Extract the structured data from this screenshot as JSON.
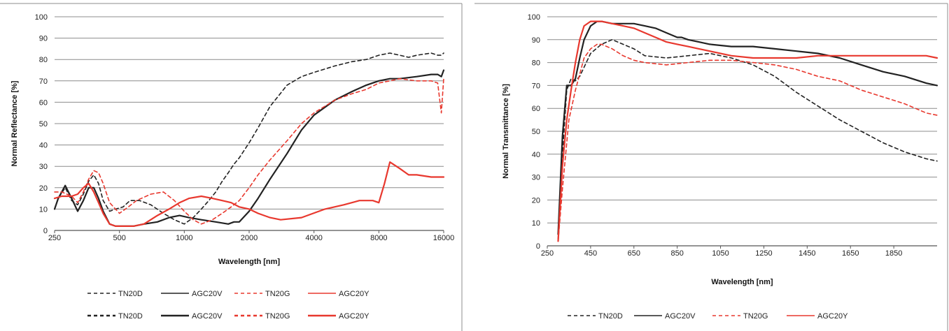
{
  "chart_data": [
    {
      "type": "line",
      "xlabel": "Wavelength [nm]",
      "ylabel": "Normal Reflectance [%]",
      "x_scale": "log2",
      "xlim": [
        250,
        16000
      ],
      "ylim": [
        0,
        100
      ],
      "x_ticks": [
        250,
        500,
        1000,
        2000,
        4000,
        8000,
        16000
      ],
      "x_tick_labels": [
        "250",
        "500",
        "1000",
        "2000",
        "4000",
        "8000",
        "16000"
      ],
      "y_ticks": [
        0,
        10,
        20,
        30,
        40,
        50,
        60,
        70,
        80,
        90,
        100
      ],
      "y_tick_labels": [
        "0",
        "10",
        "20",
        "30",
        "40",
        "50",
        "60",
        "70",
        "80",
        "90",
        "100"
      ],
      "grid": true,
      "legend_position": "bottom",
      "legend_rows": [
        [
          {
            "name": "TN20D",
            "color": "#222222",
            "dash": "dashed",
            "weight": "thin"
          },
          {
            "name": "AGC20V",
            "color": "#222222",
            "dash": "solid",
            "weight": "thin"
          },
          {
            "name": "TN20G",
            "color": "#e8382e",
            "dash": "dashed",
            "weight": "thin"
          },
          {
            "name": "AGC20Y",
            "color": "#e8382e",
            "dash": "solid",
            "weight": "thin"
          }
        ],
        [
          {
            "name": "TN20D",
            "color": "#222222",
            "dash": "dashed",
            "weight": "thick"
          },
          {
            "name": "AGC20V",
            "color": "#222222",
            "dash": "solid",
            "weight": "thick"
          },
          {
            "name": "TN20G",
            "color": "#e8382e",
            "dash": "dashed",
            "weight": "thick"
          },
          {
            "name": "AGC20Y",
            "color": "#e8382e",
            "dash": "solid",
            "weight": "thick"
          }
        ]
      ],
      "series": [
        {
          "name": "TN20D",
          "color": "#222222",
          "dash": "dashed",
          "x": [
            250,
            260,
            280,
            300,
            320,
            340,
            360,
            380,
            400,
            420,
            450,
            480,
            520,
            560,
            620,
            700,
            800,
            900,
            1000,
            1100,
            1200,
            1300,
            1400,
            1500,
            1600,
            1700,
            1800,
            2000,
            2200,
            2500,
            3000,
            3500,
            4000,
            5000,
            6000,
            7000,
            8000,
            9000,
            10000,
            11000,
            12000,
            14000,
            15000,
            15600,
            16000
          ],
          "y": [
            10,
            15,
            20,
            14,
            12,
            17,
            23,
            26,
            22,
            14,
            9,
            10,
            11,
            14,
            14,
            12,
            8,
            5,
            3,
            6,
            10,
            14,
            18,
            23,
            27,
            31,
            34,
            41,
            48,
            58,
            68,
            72,
            74,
            77,
            79,
            80,
            82,
            83,
            82,
            81,
            82,
            83,
            82,
            82,
            83
          ]
        },
        {
          "name": "AGC20V",
          "color": "#222222",
          "dash": "solid",
          "x": [
            250,
            260,
            280,
            300,
            320,
            340,
            360,
            380,
            400,
            420,
            450,
            480,
            520,
            580,
            650,
            750,
            850,
            950,
            1050,
            1200,
            1400,
            1600,
            1700,
            1800,
            2000,
            2200,
            2500,
            3000,
            3500,
            4000,
            5000,
            6000,
            7000,
            8000,
            9000,
            10000,
            12000,
            14000,
            15000,
            15600,
            16000
          ],
          "y": [
            10,
            15,
            21,
            15,
            9,
            14,
            20,
            20,
            15,
            9,
            3,
            2,
            2,
            2,
            3,
            4,
            6,
            7,
            6,
            5,
            4,
            3,
            4,
            4,
            9,
            15,
            24,
            36,
            47,
            54,
            61,
            65,
            68,
            70,
            71,
            71,
            72,
            73,
            73,
            72,
            75
          ]
        },
        {
          "name": "TN20G",
          "color": "#e8382e",
          "dash": "dashed",
          "x": [
            250,
            270,
            300,
            320,
            340,
            360,
            380,
            400,
            420,
            450,
            500,
            550,
            600,
            700,
            800,
            900,
            1000,
            1100,
            1200,
            1350,
            1500,
            1650,
            1800,
            2000,
            2200,
            2500,
            3000,
            3500,
            4000,
            5000,
            6000,
            7000,
            8000,
            9000,
            10000,
            12000,
            14000,
            15000,
            15600,
            16000
          ],
          "y": [
            18,
            18,
            16,
            13,
            18,
            24,
            28,
            27,
            22,
            13,
            8,
            11,
            14,
            17,
            18,
            14,
            9,
            5,
            3,
            5,
            8,
            11,
            14,
            20,
            26,
            33,
            42,
            50,
            55,
            61,
            64,
            66,
            69,
            70,
            71,
            70,
            70,
            69,
            55,
            71
          ]
        },
        {
          "name": "AGC20Y",
          "color": "#e8382e",
          "dash": "solid",
          "x": [
            250,
            270,
            300,
            320,
            340,
            360,
            380,
            400,
            420,
            450,
            480,
            520,
            580,
            650,
            750,
            850,
            950,
            1050,
            1200,
            1350,
            1500,
            1650,
            1800,
            2000,
            2200,
            2500,
            2800,
            3500,
            4500,
            5500,
            6500,
            7500,
            8000,
            8500,
            9000,
            10000,
            11000,
            12000,
            14000,
            16000
          ],
          "y": [
            15,
            16,
            16,
            17,
            20,
            22,
            18,
            13,
            8,
            3,
            2,
            2,
            2,
            3,
            7,
            10,
            13,
            15,
            16,
            15,
            14,
            13,
            11,
            10,
            8,
            6,
            5,
            6,
            10,
            12,
            14,
            14,
            13,
            22,
            32,
            29,
            26,
            26,
            25,
            25
          ]
        }
      ]
    },
    {
      "type": "line",
      "xlabel": "Wavelength [nm]",
      "ylabel": "Normal Transmittance [%]",
      "xlim": [
        250,
        2050
      ],
      "ylim": [
        0,
        100
      ],
      "x_ticks": [
        250,
        450,
        650,
        850,
        1050,
        1250,
        1450,
        1650,
        1850
      ],
      "x_tick_labels": [
        "250",
        "450",
        "650",
        "850",
        "1050",
        "1250",
        "1450",
        "1650",
        "1850"
      ],
      "y_ticks": [
        0,
        10,
        20,
        30,
        40,
        50,
        60,
        70,
        80,
        90,
        100
      ],
      "y_tick_labels": [
        "0",
        "10",
        "20",
        "30",
        "40",
        "50",
        "60",
        "70",
        "80",
        "90",
        "100"
      ],
      "grid": true,
      "legend_position": "bottom",
      "legend_rows": [
        [
          {
            "name": "TN20D",
            "color": "#222222",
            "dash": "dashed",
            "weight": "thin"
          },
          {
            "name": "AGC20V",
            "color": "#222222",
            "dash": "solid",
            "weight": "thin"
          },
          {
            "name": "TN20G",
            "color": "#e8382e",
            "dash": "dashed",
            "weight": "thin"
          },
          {
            "name": "AGC20Y",
            "color": "#e8382e",
            "dash": "solid",
            "weight": "thin"
          }
        ]
      ],
      "series": [
        {
          "name": "TN20D",
          "color": "#222222",
          "dash": "dashed",
          "x": [
            300,
            320,
            340,
            360,
            380,
            400,
            420,
            450,
            500,
            550,
            600,
            650,
            700,
            800,
            900,
            1000,
            1100,
            1200,
            1300,
            1400,
            1500,
            1600,
            1700,
            1800,
            1900,
            2000,
            2050
          ],
          "y": [
            3,
            40,
            68,
            73,
            72,
            74,
            78,
            84,
            88,
            90,
            88,
            86,
            83,
            82,
            83,
            84,
            82,
            79,
            74,
            67,
            61,
            55,
            50,
            45,
            41,
            38,
            37
          ]
        },
        {
          "name": "AGC20V",
          "color": "#222222",
          "dash": "solid",
          "x": [
            300,
            320,
            340,
            360,
            380,
            400,
            420,
            450,
            480,
            500,
            550,
            600,
            650,
            700,
            750,
            800,
            850,
            870,
            900,
            950,
            1000,
            1100,
            1200,
            1300,
            1400,
            1500,
            1600,
            1700,
            1800,
            1900,
            2000,
            2050
          ],
          "y": [
            5,
            48,
            70,
            70,
            73,
            82,
            90,
            96,
            98,
            98,
            97,
            97,
            97,
            96,
            95,
            93,
            91,
            91,
            90,
            89,
            88,
            87,
            87,
            86,
            85,
            84,
            82,
            79,
            76,
            74,
            71,
            70
          ]
        },
        {
          "name": "TN20G",
          "color": "#e8382e",
          "dash": "dashed",
          "x": [
            300,
            320,
            350,
            380,
            400,
            420,
            450,
            480,
            500,
            550,
            600,
            650,
            700,
            800,
            900,
            1000,
            1100,
            1200,
            1300,
            1400,
            1500,
            1600,
            1700,
            1800,
            1900,
            2000,
            2050
          ],
          "y": [
            2,
            25,
            55,
            68,
            75,
            82,
            86,
            88,
            88,
            86,
            83,
            81,
            80,
            79,
            80,
            81,
            81,
            80,
            79,
            77,
            74,
            72,
            68,
            65,
            62,
            58,
            57
          ]
        },
        {
          "name": "AGC20Y",
          "color": "#e8382e",
          "dash": "solid",
          "x": [
            300,
            320,
            340,
            360,
            380,
            400,
            420,
            450,
            470,
            500,
            550,
            600,
            650,
            700,
            750,
            800,
            850,
            900,
            950,
            1000,
            1100,
            1200,
            1300,
            1400,
            1500,
            1600,
            1700,
            1800,
            1900,
            2000,
            2050
          ],
          "y": [
            2,
            35,
            55,
            68,
            80,
            90,
            96,
            98,
            98,
            98,
            97,
            96,
            95,
            93,
            91,
            89,
            88,
            87,
            86,
            85,
            83,
            82,
            82,
            82,
            83,
            83,
            83,
            83,
            83,
            83,
            82
          ]
        }
      ]
    }
  ]
}
